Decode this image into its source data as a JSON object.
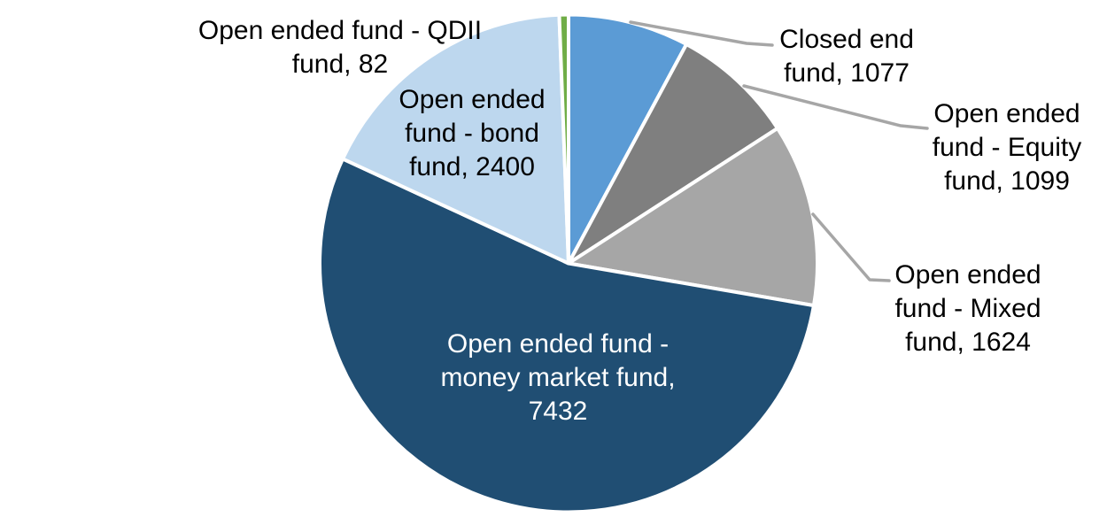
{
  "chart_data": {
    "type": "pie",
    "background": "#FFFFFF",
    "legend": "none",
    "label_style": "category-name-and-value",
    "leader_line_color": "#A6A6A6",
    "label_text_color": "#000000",
    "segments": [
      {
        "id": "closed-end-fund",
        "name": "Closed end fund",
        "value": 1077,
        "color": "#5B9BD5",
        "label_placement": "outside",
        "label_lines": [
          "Closed end",
          "fund, 1077"
        ]
      },
      {
        "id": "equity-fund",
        "name": "Open ended fund - Equity fund",
        "value": 1099,
        "color": "#7F7F7F",
        "label_placement": "outside",
        "label_lines": [
          "Open ended",
          "fund - Equity",
          "fund, 1099"
        ]
      },
      {
        "id": "mixed-fund",
        "name": "Open ended fund - Mixed fund",
        "value": 1624,
        "color": "#A6A6A6",
        "label_placement": "outside",
        "label_lines": [
          "Open ended",
          "fund - Mixed",
          "fund, 1624"
        ]
      },
      {
        "id": "money-market-fund",
        "name": "Open ended fund - money market fund",
        "value": 7432,
        "color": "#204E73",
        "label_placement": "inside",
        "label_text_color": "#FFFFFF",
        "label_lines": [
          "Open ended fund -",
          "money market fund,",
          "7432"
        ]
      },
      {
        "id": "bond-fund",
        "name": "Open ended fund - bond fund",
        "value": 2400,
        "color": "#BDD7EE",
        "label_placement": "inside",
        "label_lines": [
          "Open ended",
          "fund - bond",
          "fund, 2400"
        ]
      },
      {
        "id": "qdii-fund",
        "name": "Open ended fund - QDII fund",
        "value": 82,
        "color": "#70AD47",
        "label_placement": "outside",
        "label_lines": [
          "Open ended fund - QDII",
          "fund, 82"
        ]
      }
    ]
  }
}
